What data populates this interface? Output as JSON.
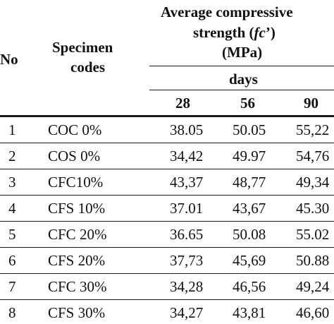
{
  "header": {
    "no": "No",
    "specimen_line1": "Specimen",
    "specimen_line2": "codes",
    "strength_line1": "Average compressive",
    "strength_line2": "strength (fc')",
    "strength_line3": "(MPa)",
    "days": "days",
    "col28": "28",
    "col56": "56",
    "col90": "90"
  },
  "rows": [
    {
      "no": "1",
      "code": "COC 0%",
      "d28": "38.05",
      "d56": "50.05",
      "d90": "55,22"
    },
    {
      "no": "2",
      "code": "COS 0%",
      "d28": "34,42",
      "d56": "49.97",
      "d90": "54,76"
    },
    {
      "no": "3",
      "code": "CFC10%",
      "d28": "43,37",
      "d56": "48,77",
      "d90": "49,34"
    },
    {
      "no": "4",
      "code": "CFS 10%",
      "d28": "37.01",
      "d56": "43,67",
      "d90": "45.30"
    },
    {
      "no": "5",
      "code": "CFC 20%",
      "d28": "36.65",
      "d56": "50.08",
      "d90": "55.02"
    },
    {
      "no": "6",
      "code": "CFS 20%",
      "d28": "37,73",
      "d56": "45,69",
      "d90": "50.88"
    },
    {
      "no": "7",
      "code": "CFC 30%",
      "d28": "34,28",
      "d56": "46,56",
      "d90": "49,24"
    },
    {
      "no": "8",
      "code": "CFS 30%",
      "d28": "34,27",
      "d56": "43,81",
      "d90": "46,60"
    }
  ]
}
